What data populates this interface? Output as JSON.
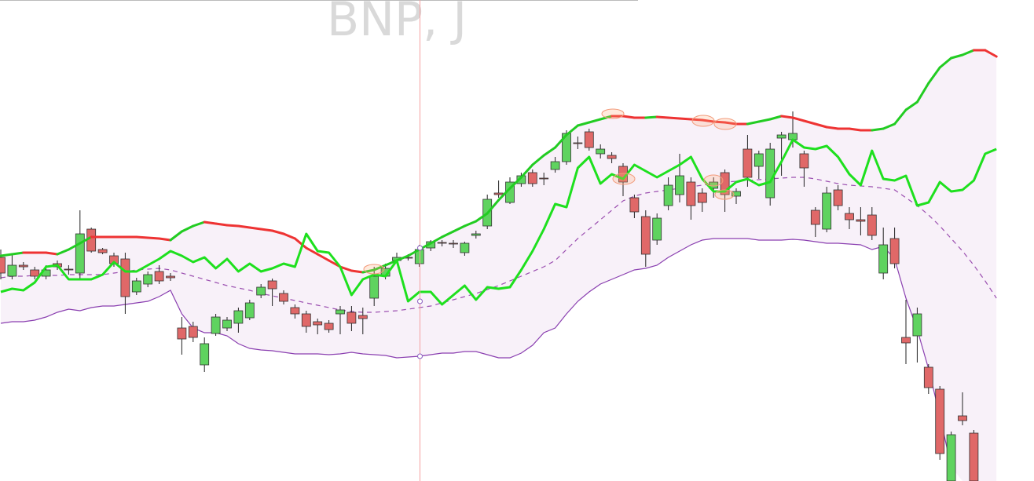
{
  "chart_data": {
    "type": "candlestick",
    "title": "BNP, J",
    "ylim": [
      0,
      613
    ],
    "up_color": "#5fd35f",
    "down_color": "#e06868",
    "open": [
      285,
      261,
      275,
      269,
      261,
      277,
      270,
      265,
      321,
      295,
      287,
      283,
      241,
      251,
      267,
      261,
      195,
      197,
      148,
      188,
      195,
      201,
      208,
      237,
      255,
      239,
      221,
      213,
      203,
      201,
      213,
      215,
      211,
      233,
      261,
      281,
      285,
      277,
      297,
      304,
      303,
      291,
      313,
      325,
      367,
      355,
      379,
      393,
      386,
      397,
      407,
      431,
      445,
      417,
      415,
      401,
      361,
      337,
      307,
      351,
      365,
      381,
      367,
      373,
      393,
      363,
      423,
      401,
      361,
      437,
      435,
      417,
      345,
      321,
      371,
      341,
      333,
      339,
      265,
      309,
      183,
      185,
      145,
      117,
      0,
      83,
      61,
      null,
      null
    ],
    "high": [
      295,
      288,
      279,
      273,
      275,
      281,
      275,
      345,
      323,
      297,
      291,
      291,
      259,
      267,
      275,
      265,
      209,
      203,
      183,
      213,
      209,
      221,
      231,
      251,
      258,
      243,
      225,
      217,
      207,
      205,
      223,
      223,
      221,
      273,
      277,
      291,
      289,
      301,
      307,
      307,
      307,
      305,
      319,
      365,
      383,
      387,
      393,
      397,
      393,
      413,
      447,
      439,
      449,
      429,
      419,
      405,
      365,
      345,
      341,
      387,
      417,
      387,
      373,
      387,
      397,
      373,
      441,
      421,
      431,
      445,
      471,
      421,
      349,
      375,
      377,
      349,
      349,
      349,
      323,
      323,
      231,
      221,
      149,
      121,
      63,
      113,
      65,
      null,
      null
    ],
    "low": [
      257,
      257,
      269,
      257,
      257,
      269,
      263,
      258,
      291,
      289,
      273,
      213,
      237,
      247,
      251,
      255,
      161,
      177,
      139,
      185,
      191,
      189,
      205,
      233,
      223,
      225,
      207,
      189,
      187,
      189,
      187,
      191,
      187,
      223,
      257,
      277,
      281,
      273,
      293,
      299,
      297,
      287,
      309,
      321,
      361,
      353,
      375,
      375,
      377,
      393,
      403,
      423,
      421,
      411,
      405,
      363,
      335,
      273,
      301,
      345,
      355,
      333,
      343,
      361,
      343,
      353,
      375,
      385,
      351,
      389,
      425,
      375,
      311,
      317,
      345,
      321,
      313,
      307,
      257,
      271,
      149,
      151,
      111,
      27,
      0,
      71,
      0,
      null,
      null
    ],
    "close": [
      265,
      275,
      273,
      261,
      269,
      273,
      269,
      315,
      293,
      291,
      277,
      235,
      255,
      263,
      255,
      259,
      181,
      183,
      175,
      209,
      205,
      217,
      227,
      247,
      245,
      229,
      213,
      197,
      199,
      193,
      218,
      201,
      207,
      261,
      271,
      285,
      284,
      295,
      305,
      303,
      302,
      303,
      315,
      359,
      365,
      381,
      389,
      379,
      385,
      407,
      443,
      430,
      425,
      423,
      411,
      381,
      343,
      289,
      335,
      377,
      389,
      351,
      355,
      381,
      365,
      369,
      387,
      417,
      423,
      441,
      443,
      399,
      327,
      367,
      351,
      333,
      331,
      313,
      301,
      277,
      176,
      213,
      119,
      35,
      59,
      77,
      0,
      null,
      null
    ],
    "upper_band": {
      "up_color": "#22cc22",
      "down_color": "#ee3333",
      "values": [
        287,
        289,
        291,
        291,
        291,
        289,
        295,
        303,
        311,
        311,
        311,
        311,
        311,
        310,
        309,
        307,
        318,
        325,
        330,
        328,
        326,
        325,
        323,
        321,
        319,
        315,
        309,
        297,
        289,
        281,
        273,
        268,
        266,
        269,
        275,
        281,
        287,
        295,
        303,
        311,
        318,
        325,
        331,
        341,
        358,
        373,
        387,
        403,
        415,
        425,
        441,
        453,
        457,
        461,
        465,
        465,
        463,
        463,
        464,
        463,
        462,
        461,
        460,
        458,
        457,
        455,
        455,
        458,
        461,
        465,
        463,
        459,
        455,
        451,
        449,
        449,
        447,
        447,
        449,
        455,
        473,
        483,
        507,
        527,
        539,
        543,
        549,
        549,
        541
      ]
    },
    "middle_band": {
      "color": "#9b4fb0",
      "values": [
        259,
        261,
        261,
        262,
        262,
        262,
        263,
        263,
        263,
        263,
        265,
        267,
        269,
        270,
        271,
        269,
        265,
        261,
        257,
        253,
        249,
        246,
        243,
        239,
        236,
        233,
        230,
        227,
        224,
        221,
        218,
        216,
        215,
        215,
        216,
        217,
        219,
        221,
        223,
        227,
        231,
        235,
        239,
        244,
        249,
        255,
        261,
        267,
        273,
        281,
        295,
        309,
        321,
        333,
        345,
        357,
        363,
        367,
        369,
        371,
        373,
        375,
        377,
        379,
        381,
        382,
        383,
        384,
        385,
        386,
        387,
        387,
        385,
        382,
        379,
        377,
        376,
        375,
        373,
        371,
        361,
        351,
        339,
        325,
        309,
        293,
        275,
        255,
        233
      ]
    },
    "lower_band": {
      "color": "#8a3fb0",
      "values": [
        201,
        203,
        203,
        205,
        209,
        215,
        219,
        217,
        221,
        223,
        223,
        225,
        227,
        229,
        235,
        243,
        213,
        195,
        189,
        189,
        185,
        175,
        169,
        167,
        166,
        164,
        162,
        162,
        162,
        161,
        162,
        164,
        162,
        161,
        160,
        157,
        158,
        159,
        161,
        163,
        163,
        165,
        165,
        161,
        157,
        157,
        163,
        173,
        189,
        195,
        213,
        229,
        241,
        251,
        257,
        263,
        269,
        271,
        275,
        285,
        293,
        301,
        307,
        309,
        309,
        309,
        309,
        307,
        307,
        307,
        308,
        307,
        305,
        303,
        303,
        302,
        301,
        295,
        299,
        283,
        233,
        193,
        143,
        83,
        18,
        null,
        null,
        null,
        null
      ]
    },
    "band_fill": "#f8f1f9",
    "indicator": {
      "color": "#1ee01e",
      "values": [
        241,
        245,
        243,
        253,
        273,
        275,
        257,
        257,
        257,
        263,
        279,
        267,
        267,
        275,
        283,
        293,
        287,
        279,
        285,
        271,
        283,
        267,
        277,
        267,
        271,
        277,
        273,
        315,
        293,
        291,
        273,
        237,
        257,
        263,
        261,
        281,
        229,
        241,
        241,
        225,
        237,
        249,
        231,
        247,
        245,
        247,
        269,
        293,
        321,
        353,
        349,
        399,
        413,
        379,
        391,
        385,
        403,
        395,
        387,
        395,
        403,
        413,
        385,
        369,
        369,
        381,
        385,
        377,
        381,
        407,
        435,
        425,
        423,
        427,
        413,
        391,
        377,
        421,
        385,
        383,
        389,
        351,
        355,
        381,
        369,
        371,
        383,
        417,
        423
      ]
    }
  }
}
